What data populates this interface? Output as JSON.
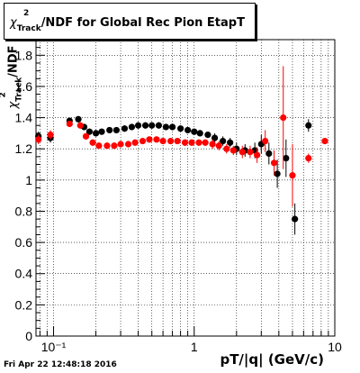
{
  "title": {
    "symbol": "χ",
    "superscript": "2",
    "subscript": "Track",
    "rest": "/NDF for Global Rec Pion EtapT"
  },
  "ylabel": {
    "symbol": "χ",
    "superscript": "2",
    "subscript": "Track",
    "rest": "/NDF"
  },
  "xlabel": "pT/|q| (GeV/c)",
  "footer": "Fri Apr 22 12:48:18 2016",
  "colors": {
    "black_series": "#000000",
    "red_series": "#ff0000",
    "grid": "#000000"
  },
  "chart_data": {
    "type": "scatter",
    "title": "χ2Track/NDF for Global Rec Pion EtapT",
    "xlabel": "pT/|q| (GeV/c)",
    "ylabel": "χ2Track/NDF",
    "xscale": "log",
    "xlim": [
      0.075,
      10
    ],
    "ylim": [
      0,
      1.9
    ],
    "grid": true,
    "x_tick_labels": [
      "10⁻¹",
      "1",
      "10"
    ],
    "y_tick_labels": [
      "0",
      "0.2",
      "0.4",
      "0.6",
      "0.8",
      "1",
      "1.2",
      "1.4",
      "1.6",
      "1.8"
    ],
    "series": [
      {
        "color": "#000000",
        "points": [
          {
            "x": 0.078,
            "y": 1.28,
            "err": 0.03
          },
          {
            "x": 0.095,
            "y": 1.27,
            "err": 0.03
          },
          {
            "x": 0.13,
            "y": 1.38,
            "err": 0.02
          },
          {
            "x": 0.15,
            "y": 1.39,
            "err": 0.02
          },
          {
            "x": 0.165,
            "y": 1.34,
            "err": 0.02
          },
          {
            "x": 0.18,
            "y": 1.31,
            "err": 0.02
          },
          {
            "x": 0.2,
            "y": 1.3,
            "err": 0.02
          },
          {
            "x": 0.22,
            "y": 1.31,
            "err": 0.02
          },
          {
            "x": 0.25,
            "y": 1.32,
            "err": 0.02
          },
          {
            "x": 0.28,
            "y": 1.32,
            "err": 0.02
          },
          {
            "x": 0.32,
            "y": 1.33,
            "err": 0.02
          },
          {
            "x": 0.36,
            "y": 1.34,
            "err": 0.02
          },
          {
            "x": 0.4,
            "y": 1.35,
            "err": 0.02
          },
          {
            "x": 0.45,
            "y": 1.35,
            "err": 0.02
          },
          {
            "x": 0.5,
            "y": 1.35,
            "err": 0.02
          },
          {
            "x": 0.56,
            "y": 1.35,
            "err": 0.02
          },
          {
            "x": 0.63,
            "y": 1.34,
            "err": 0.02
          },
          {
            "x": 0.7,
            "y": 1.34,
            "err": 0.02
          },
          {
            "x": 0.8,
            "y": 1.33,
            "err": 0.02
          },
          {
            "x": 0.9,
            "y": 1.32,
            "err": 0.02
          },
          {
            "x": 1.0,
            "y": 1.31,
            "err": 0.02
          },
          {
            "x": 1.1,
            "y": 1.3,
            "err": 0.02
          },
          {
            "x": 1.25,
            "y": 1.29,
            "err": 0.02
          },
          {
            "x": 1.4,
            "y": 1.27,
            "err": 0.03
          },
          {
            "x": 1.6,
            "y": 1.25,
            "err": 0.03
          },
          {
            "x": 1.8,
            "y": 1.24,
            "err": 0.03
          },
          {
            "x": 2.0,
            "y": 1.2,
            "err": 0.04
          },
          {
            "x": 2.3,
            "y": 1.19,
            "err": 0.04
          },
          {
            "x": 2.7,
            "y": 1.19,
            "err": 0.05
          },
          {
            "x": 3.0,
            "y": 1.23,
            "err": 0.06
          },
          {
            "x": 3.4,
            "y": 1.17,
            "err": 0.07
          },
          {
            "x": 3.9,
            "y": 1.04,
            "err": 0.09
          },
          {
            "x": 4.5,
            "y": 1.14,
            "err": 0.12
          },
          {
            "x": 5.2,
            "y": 0.75,
            "err": 0.1
          },
          {
            "x": 6.5,
            "y": 1.35,
            "err": 0.04
          }
        ]
      },
      {
        "color": "#ff0000",
        "points": [
          {
            "x": 0.078,
            "y": 1.26,
            "err": 0.03
          },
          {
            "x": 0.095,
            "y": 1.29,
            "err": 0.03
          },
          {
            "x": 0.13,
            "y": 1.36,
            "err": 0.02
          },
          {
            "x": 0.155,
            "y": 1.35,
            "err": 0.02
          },
          {
            "x": 0.17,
            "y": 1.28,
            "err": 0.02
          },
          {
            "x": 0.19,
            "y": 1.24,
            "err": 0.02
          },
          {
            "x": 0.21,
            "y": 1.22,
            "err": 0.02
          },
          {
            "x": 0.24,
            "y": 1.22,
            "err": 0.02
          },
          {
            "x": 0.27,
            "y": 1.22,
            "err": 0.02
          },
          {
            "x": 0.3,
            "y": 1.23,
            "err": 0.02
          },
          {
            "x": 0.34,
            "y": 1.23,
            "err": 0.02
          },
          {
            "x": 0.38,
            "y": 1.24,
            "err": 0.02
          },
          {
            "x": 0.43,
            "y": 1.25,
            "err": 0.02
          },
          {
            "x": 0.48,
            "y": 1.26,
            "err": 0.02
          },
          {
            "x": 0.54,
            "y": 1.26,
            "err": 0.02
          },
          {
            "x": 0.6,
            "y": 1.25,
            "err": 0.02
          },
          {
            "x": 0.68,
            "y": 1.25,
            "err": 0.02
          },
          {
            "x": 0.76,
            "y": 1.25,
            "err": 0.02
          },
          {
            "x": 0.86,
            "y": 1.24,
            "err": 0.02
          },
          {
            "x": 0.96,
            "y": 1.24,
            "err": 0.02
          },
          {
            "x": 1.08,
            "y": 1.24,
            "err": 0.02
          },
          {
            "x": 1.2,
            "y": 1.24,
            "err": 0.02
          },
          {
            "x": 1.35,
            "y": 1.23,
            "err": 0.03
          },
          {
            "x": 1.5,
            "y": 1.22,
            "err": 0.03
          },
          {
            "x": 1.7,
            "y": 1.2,
            "err": 0.03
          },
          {
            "x": 1.9,
            "y": 1.19,
            "err": 0.03
          },
          {
            "x": 2.2,
            "y": 1.18,
            "err": 0.04
          },
          {
            "x": 2.5,
            "y": 1.18,
            "err": 0.04
          },
          {
            "x": 2.8,
            "y": 1.16,
            "err": 0.05
          },
          {
            "x": 3.2,
            "y": 1.25,
            "err": 0.07
          },
          {
            "x": 3.7,
            "y": 1.11,
            "err": 0.08
          },
          {
            "x": 4.3,
            "y": 1.4,
            "err": 0.33
          },
          {
            "x": 5.0,
            "y": 1.03,
            "err": 0.2
          },
          {
            "x": 6.5,
            "y": 1.14,
            "err": 0.03
          },
          {
            "x": 8.5,
            "y": 1.25,
            "err": 0.02
          }
        ]
      }
    ]
  }
}
